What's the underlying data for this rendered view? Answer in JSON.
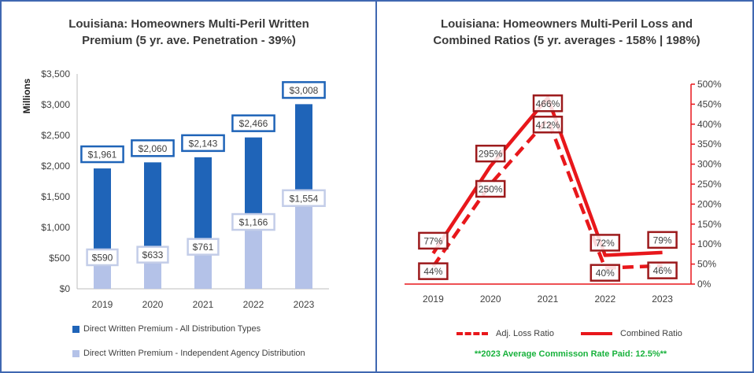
{
  "left": {
    "title_line1": "Louisiana: Homeowners Multi-Peril Written",
    "title_line2": "Premium (5 yr. ave. Penetration - 39%)",
    "ylabel": "Millions",
    "legend_all": "Direct Written Premium - All Distribution Types",
    "legend_indep": "Direct Written Premium - Independent Agency Distribution"
  },
  "right": {
    "title_line1": "Louisiana: Homeowners Multi-Peril Loss and",
    "title_line2": "Combined Ratios (5 yr. averages - 158% | 198%)",
    "legend_loss": "Adj. Loss Ratio",
    "legend_combined": "Combined Ratio",
    "note": "**2023 Average Commisson Rate Paid: 12.5%**"
  },
  "colors": {
    "all": "#1f64b8",
    "indep": "#b4c2e8",
    "line": "#e8171b",
    "label_border_dark": "#9c1a1c",
    "frame": "#3f67b1"
  },
  "chart_data": [
    {
      "type": "bar",
      "title": "Louisiana: Homeowners Multi-Peril Written Premium (5 yr. ave. Penetration - 39%)",
      "ylabel": "Millions",
      "categories": [
        "2019",
        "2020",
        "2021",
        "2022",
        "2023"
      ],
      "ylim": [
        0,
        3500
      ],
      "yticks": [
        0,
        500,
        1000,
        1500,
        2000,
        2500,
        3000,
        3500
      ],
      "ytick_labels": [
        "$0",
        "$500",
        "$1,000",
        "$1,500",
        "$2,000",
        "$2,500",
        "$3,000",
        "$3,500"
      ],
      "series": [
        {
          "name": "Direct Written Premium - All Distribution Types",
          "values": [
            1961,
            2060,
            2143,
            2466,
            3008
          ],
          "labels": [
            "$1,961",
            "$2,060",
            "$2,143",
            "$2,466",
            "$3,008"
          ]
        },
        {
          "name": "Direct Written Premium - Independent Agency Distribution",
          "values": [
            590,
            633,
            761,
            1166,
            1554
          ],
          "labels": [
            "$590",
            "$633",
            "$761",
            "$1,166",
            "$1,554"
          ]
        }
      ]
    },
    {
      "type": "line",
      "title": "Louisiana: Homeowners Multi-Peril Loss and Combined Ratios (5 yr. averages - 158% | 198%)",
      "categories": [
        "2019",
        "2020",
        "2021",
        "2022",
        "2023"
      ],
      "ylim": [
        0,
        500
      ],
      "yticks": [
        0,
        50,
        100,
        150,
        200,
        250,
        300,
        350,
        400,
        450,
        500
      ],
      "ytick_labels": [
        "0%",
        "50%",
        "100%",
        "150%",
        "200%",
        "250%",
        "300%",
        "350%",
        "400%",
        "450%",
        "500%"
      ],
      "series": [
        {
          "name": "Adj. Loss Ratio",
          "values": [
            44,
            250,
            412,
            40,
            46
          ],
          "labels": [
            "44%",
            "250%",
            "412%",
            "40%",
            "46%"
          ],
          "style": "dashed"
        },
        {
          "name": "Combined Ratio",
          "values": [
            77,
            295,
            466,
            72,
            79
          ],
          "labels": [
            "77%",
            "295%",
            "466%",
            "72%",
            "79%"
          ],
          "style": "solid"
        }
      ]
    }
  ]
}
